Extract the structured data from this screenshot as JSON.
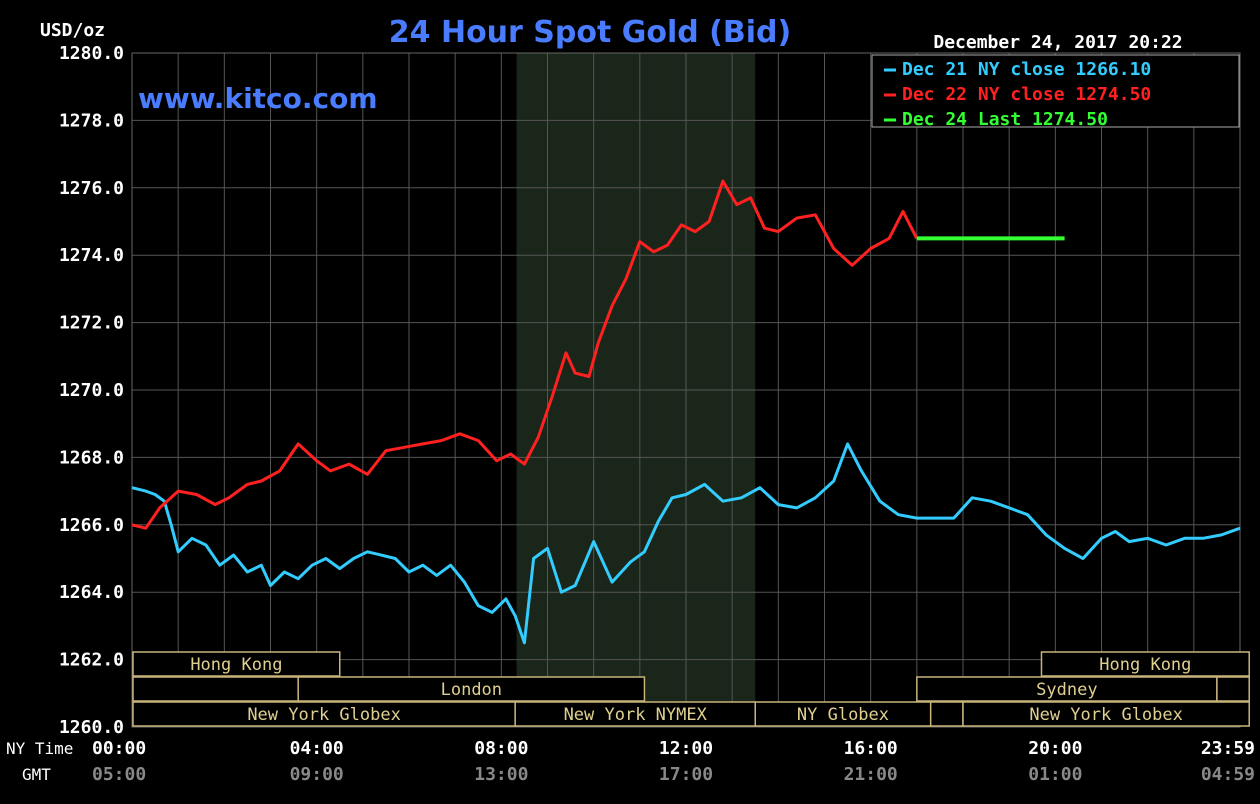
{
  "chart_data": {
    "type": "line",
    "title": "24 Hour Spot Gold (Bid)",
    "ylabel": "USD/oz",
    "watermark": "www.kitco.com",
    "timestamp": "December 24, 2017 20:22",
    "ylim": [
      1260.0,
      1280.0
    ],
    "yticks": [
      "1260.0",
      "1262.0",
      "1264.0",
      "1266.0",
      "1268.0",
      "1270.0",
      "1272.0",
      "1274.0",
      "1276.0",
      "1278.0",
      "1280.0"
    ],
    "xlim": [
      0,
      24
    ],
    "row_labels": {
      "ny": "NY Time",
      "gmt": "GMT"
    },
    "xticks_ny": [
      "00:00",
      "04:00",
      "08:00",
      "12:00",
      "16:00",
      "20:00",
      "23:59"
    ],
    "xticks_gmt": [
      "05:00",
      "09:00",
      "13:00",
      "17:00",
      "21:00",
      "01:00",
      "04:59"
    ],
    "xtick_hours": [
      0,
      4,
      8,
      12,
      16,
      20,
      24
    ],
    "shaded_region": [
      8.33,
      13.5
    ],
    "legend": [
      {
        "text": "Dec 21 NY close 1266.10",
        "color": "#33ccff"
      },
      {
        "text": "Dec 22 NY close 1274.50",
        "color": "#ff2020"
      },
      {
        "text": "Dec 24 Last 1274.50",
        "color": "#33ff33"
      }
    ],
    "series": [
      {
        "name": "Dec 21",
        "color": "#33ccff",
        "x": [
          0,
          0.3,
          0.5,
          0.7,
          0.85,
          1.0,
          1.3,
          1.6,
          1.9,
          2.2,
          2.5,
          2.8,
          3.0,
          3.3,
          3.6,
          3.9,
          4.2,
          4.5,
          4.8,
          5.1,
          5.4,
          5.7,
          6.0,
          6.3,
          6.6,
          6.9,
          7.2,
          7.5,
          7.8,
          8.1,
          8.3,
          8.5,
          8.7,
          9.0,
          9.3,
          9.6,
          10.0,
          10.4,
          10.8,
          11.1,
          11.4,
          11.7,
          12.0,
          12.4,
          12.8,
          13.2,
          13.6,
          14.0,
          14.4,
          14.8,
          15.2,
          15.5,
          15.8,
          16.2,
          16.6,
          17.0,
          17.4,
          17.8,
          18.2,
          18.6,
          19.0,
          19.4,
          19.8,
          20.2,
          20.6,
          21.0,
          21.3,
          21.6,
          22.0,
          22.4,
          22.8,
          23.2,
          23.6,
          24.0
        ],
        "values": [
          1267.1,
          1267.0,
          1266.9,
          1266.7,
          1266.0,
          1265.2,
          1265.6,
          1265.4,
          1264.8,
          1265.1,
          1264.6,
          1264.8,
          1264.2,
          1264.6,
          1264.4,
          1264.8,
          1265.0,
          1264.7,
          1265.0,
          1265.2,
          1265.1,
          1265.0,
          1264.6,
          1264.8,
          1264.5,
          1264.8,
          1264.3,
          1263.6,
          1263.4,
          1263.8,
          1263.3,
          1262.5,
          1265.0,
          1265.3,
          1264.0,
          1264.2,
          1265.5,
          1264.3,
          1264.9,
          1265.2,
          1266.1,
          1266.8,
          1266.9,
          1267.2,
          1266.7,
          1266.8,
          1267.1,
          1266.6,
          1266.5,
          1266.8,
          1267.3,
          1268.4,
          1267.6,
          1266.7,
          1266.3,
          1266.2,
          1266.2,
          1266.2,
          1266.8,
          1266.7,
          1266.5,
          1266.3,
          1265.7,
          1265.3,
          1265.0,
          1265.6,
          1265.8,
          1265.5,
          1265.6,
          1265.4,
          1265.6,
          1265.6,
          1265.7,
          1265.9
        ]
      },
      {
        "name": "Dec 22",
        "color": "#ff2020",
        "x": [
          0,
          0.3,
          0.6,
          1.0,
          1.4,
          1.8,
          2.1,
          2.5,
          2.8,
          3.2,
          3.6,
          4.0,
          4.3,
          4.7,
          5.1,
          5.5,
          5.9,
          6.3,
          6.7,
          7.1,
          7.5,
          7.9,
          8.2,
          8.5,
          8.8,
          9.1,
          9.4,
          9.6,
          9.9,
          10.1,
          10.4,
          10.7,
          11.0,
          11.3,
          11.6,
          11.9,
          12.2,
          12.5,
          12.8,
          13.1,
          13.4,
          13.7,
          14.0,
          14.4,
          14.8,
          15.2,
          15.6,
          16.0,
          16.4,
          16.7,
          17.0
        ],
        "values": [
          1266.0,
          1265.9,
          1266.5,
          1267.0,
          1266.9,
          1266.6,
          1266.8,
          1267.2,
          1267.3,
          1267.6,
          1268.4,
          1267.9,
          1267.6,
          1267.8,
          1267.5,
          1268.2,
          1268.3,
          1268.4,
          1268.5,
          1268.7,
          1268.5,
          1267.9,
          1268.1,
          1267.8,
          1268.6,
          1269.8,
          1271.1,
          1270.5,
          1270.4,
          1271.4,
          1272.5,
          1273.3,
          1274.4,
          1274.1,
          1274.3,
          1274.9,
          1274.7,
          1275.0,
          1276.2,
          1275.5,
          1275.7,
          1274.8,
          1274.7,
          1275.1,
          1275.2,
          1274.2,
          1273.7,
          1274.2,
          1274.5,
          1275.3,
          1274.5
        ]
      },
      {
        "name": "Dec 24",
        "color": "#33ff33",
        "x": [
          17.0,
          20.2
        ],
        "values": [
          1274.5,
          1274.5
        ]
      }
    ],
    "sessions": [
      {
        "label": "Hong Kong",
        "start": 0,
        "end": 4.5,
        "row": 0
      },
      {
        "label": "Hong Kong",
        "start": 19.7,
        "end": 24.2,
        "row": 0
      },
      {
        "label": "",
        "start": 0,
        "end": 3.6,
        "row": 1
      },
      {
        "label": "London",
        "start": 3.6,
        "end": 11.1,
        "row": 1
      },
      {
        "label": "Sydney",
        "start": 17.0,
        "end": 23.5,
        "row": 1
      },
      {
        "label": "",
        "start": 23.5,
        "end": 24.2,
        "row": 1
      },
      {
        "label": "New York Globex",
        "start": 0,
        "end": 8.3,
        "row": 2
      },
      {
        "label": "New York NYMEX",
        "start": 8.3,
        "end": 13.5,
        "row": 2
      },
      {
        "label": "NY Globex",
        "start": 13.5,
        "end": 17.3,
        "row": 2
      },
      {
        "label": "",
        "start": 17.3,
        "end": 18.0,
        "row": 2
      },
      {
        "label": "New York Globex",
        "start": 18.0,
        "end": 24.2,
        "row": 2
      }
    ]
  }
}
